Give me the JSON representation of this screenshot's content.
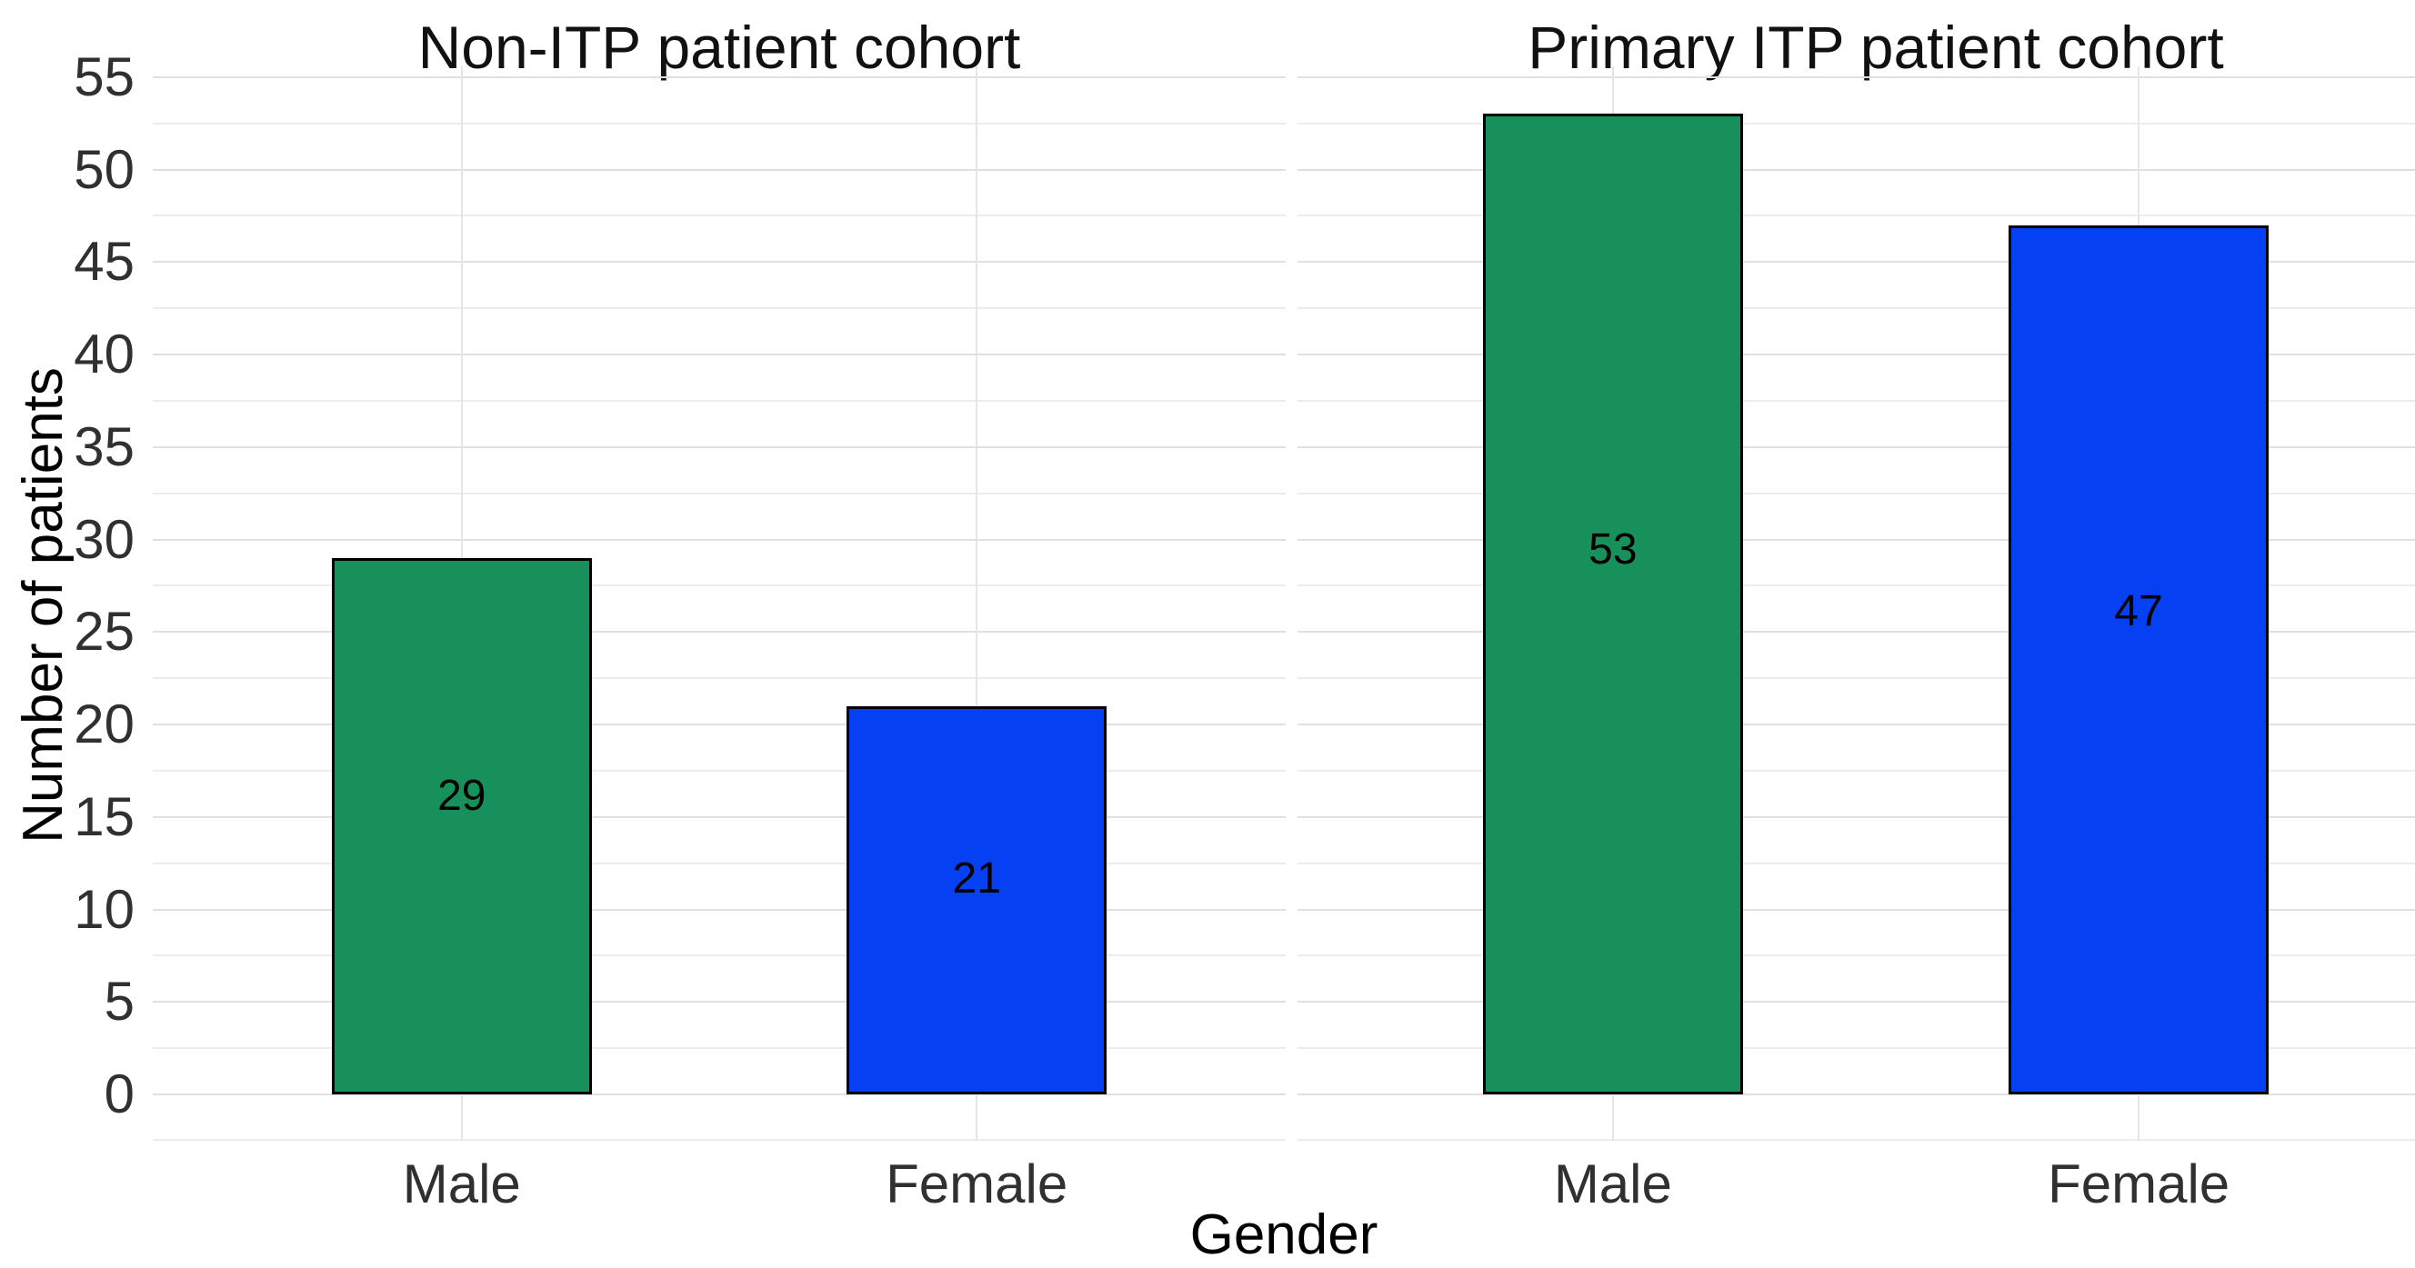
{
  "chart_data": {
    "type": "bar",
    "facets": [
      {
        "title": "Non-ITP patient cohort",
        "categories": [
          "Male",
          "Female"
        ],
        "values": [
          29,
          21
        ]
      },
      {
        "title": "Primary ITP patient cohort",
        "categories": [
          "Male",
          "Female"
        ],
        "values": [
          53,
          47
        ]
      }
    ],
    "xlabel": "Gender",
    "ylabel": "Number of patients",
    "y_axis": {
      "ticks": [
        0,
        5,
        10,
        15,
        20,
        25,
        30,
        35,
        40,
        45,
        50,
        55
      ],
      "ylim": [
        0,
        55
      ],
      "minor_step": 2.5
    },
    "grid": {
      "major_color": "#e0e0e0",
      "minor_color": "#ececec",
      "vertical_color": "#e5e5e5"
    },
    "bar_colors": [
      "#17905C",
      "#0540F2"
    ],
    "bar_outline_color": "#000000",
    "legend": "none",
    "background": "#ffffff"
  }
}
